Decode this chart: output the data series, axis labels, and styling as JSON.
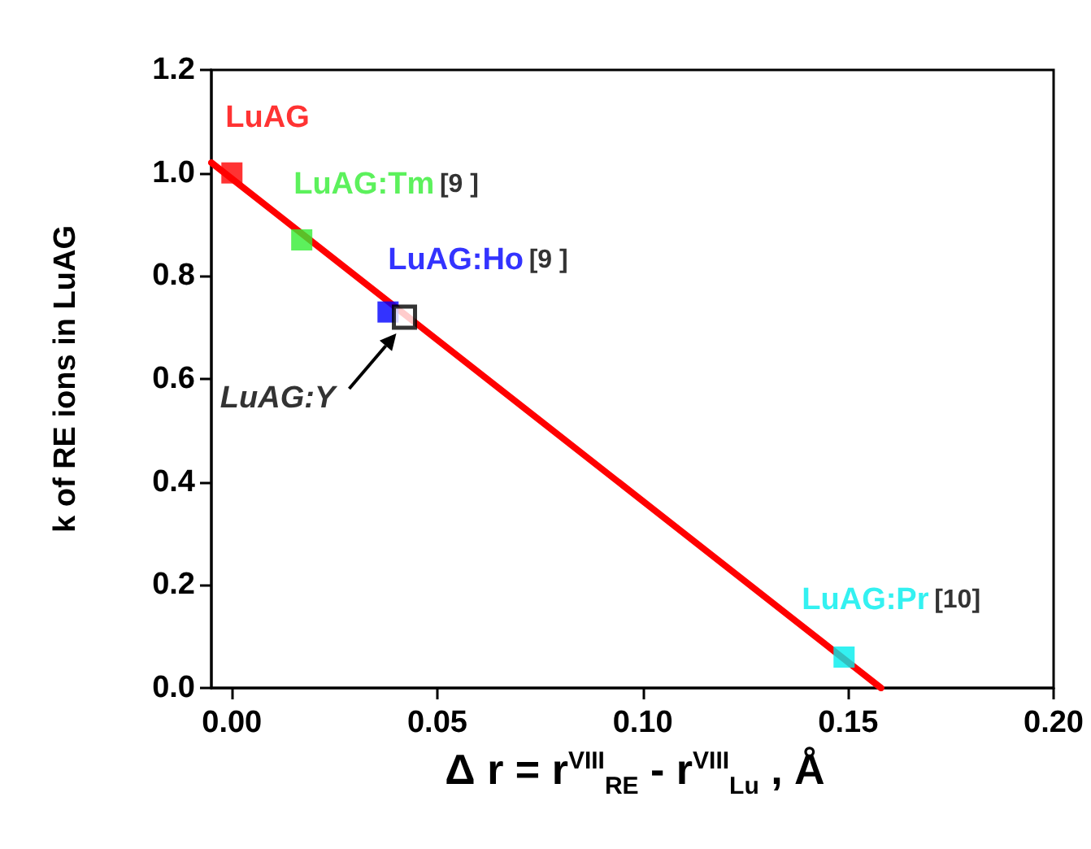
{
  "chart_data": {
    "type": "scatter",
    "xlabel": "Δ r = r$^{VIII}$$_{RE}$ - r$^{VIII}$$_{Lu}$ , Å",
    "ylabel": "k of RE ions in LuAG",
    "marker": "square",
    "legend": false,
    "grid": false,
    "xlim": [
      -0.005,
      0.2
    ],
    "xticks": [
      {
        "value": 0,
        "label": "0.00"
      },
      0.05,
      {
        "value": 0.1,
        "label": "0.10"
      },
      0.15,
      {
        "value": 0.2,
        "label": "0.20"
      }
    ],
    "ylim": [
      0,
      1.2
    ],
    "yticks": [
      {
        "value": 0,
        "label": "0.0"
      },
      0.2,
      0.4,
      0.6,
      0.8,
      {
        "value": 1,
        "label": "1.0"
      },
      1.2
    ],
    "series": [
      {
        "type": "line",
        "color": "#ff0000",
        "marker": "none",
        "x": [
          -0.005,
          0.158
        ],
        "values": [
          1.02,
          0
        ]
      },
      {
        "name": "LuAG",
        "color": "#ff0000",
        "x": [
          0
        ],
        "values": [
          1.0
        ]
      },
      {
        "name": "LuAG:Tm",
        "color": "#33ee33",
        "x": [
          0.017
        ],
        "values": [
          0.87
        ]
      },
      {
        "name": "LuAG:Ho",
        "color": "#0000ff",
        "x": [
          0.038
        ],
        "values": [
          0.73
        ]
      },
      {
        "color": "#000000",
        "x": [
          0.042
        ],
        "values": [
          0.72
        ]
      },
      {
        "name": "LuAG:Pr",
        "color": "#00eeee",
        "x": [
          0.149
        ],
        "values": [
          0.06
        ]
      }
    ],
    "annotations": [
      "LuAG:Y",
      "[9 ]",
      "[9 ]",
      "[10]"
    ]
  }
}
